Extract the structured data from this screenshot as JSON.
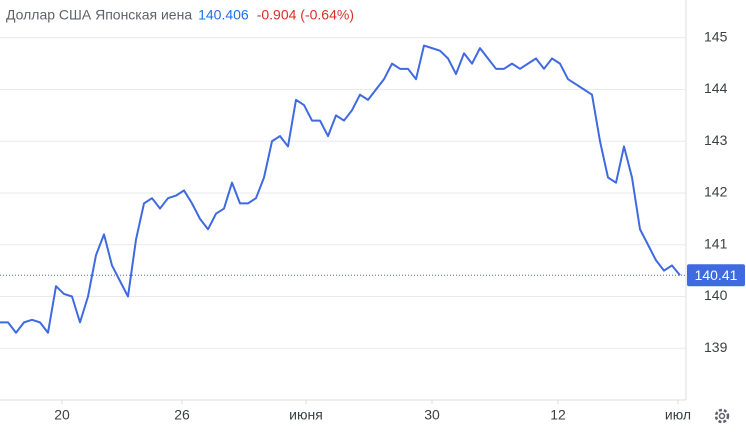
{
  "chart_data": {
    "type": "line",
    "title": "Доллар США Японская иена",
    "price": "140.406",
    "change": "-0.904 (-0.64%)",
    "x": [
      0,
      1,
      2,
      3,
      4,
      5,
      6,
      7,
      8,
      9,
      10,
      11,
      12,
      13,
      14,
      15,
      16,
      17,
      18,
      19,
      20,
      21,
      22,
      23,
      24,
      25,
      26,
      27,
      28,
      29,
      30,
      31,
      32,
      33,
      34,
      35,
      36,
      37,
      38,
      39,
      40,
      41,
      42,
      43,
      44,
      45,
      46,
      47,
      48,
      49,
      50,
      51,
      52,
      53,
      54,
      55,
      56,
      57,
      58,
      59,
      60,
      61,
      62,
      63,
      64,
      65,
      66,
      67,
      68,
      69,
      70,
      71,
      72,
      73,
      74,
      75,
      76,
      77,
      78,
      79,
      80,
      81,
      82,
      83,
      84,
      85
    ],
    "series": [
      {
        "name": "USD/JPY",
        "color": "#3f6ae0",
        "values": [
          139.5,
          139.5,
          139.3,
          139.5,
          139.55,
          139.5,
          139.3,
          140.2,
          140.05,
          140.0,
          139.5,
          140.0,
          140.8,
          141.2,
          140.6,
          140.3,
          140.0,
          141.1,
          141.8,
          141.9,
          141.7,
          141.9,
          141.95,
          142.05,
          141.8,
          141.5,
          141.3,
          141.6,
          141.7,
          142.2,
          141.8,
          141.8,
          141.9,
          142.3,
          143.0,
          143.1,
          142.9,
          143.8,
          143.7,
          143.4,
          143.4,
          143.1,
          143.5,
          143.4,
          143.6,
          143.9,
          143.8,
          144.0,
          144.2,
          144.5,
          144.4,
          144.4,
          144.2,
          144.85,
          144.8,
          144.75,
          144.6,
          144.3,
          144.7,
          144.5,
          144.8,
          144.6,
          144.4,
          144.4,
          144.5,
          144.4,
          144.5,
          144.6,
          144.4,
          144.6,
          144.5,
          144.2,
          144.1,
          144.0,
          143.9,
          143.0,
          142.3,
          142.2,
          142.9,
          142.3,
          141.3,
          141.0,
          140.7,
          140.5,
          140.6,
          140.41
        ]
      }
    ],
    "last_price": 140.41,
    "xlim": [
      0,
      86
    ],
    "xticks": [
      {
        "value": 7.75,
        "label": "20"
      },
      {
        "value": 22.75,
        "label": "26"
      },
      {
        "value": 38.25,
        "label": "июня"
      },
      {
        "value": 54,
        "label": "30"
      },
      {
        "value": 69.75,
        "label": "12"
      },
      {
        "value": 84.75,
        "label": "июл"
      }
    ],
    "ylim": [
      138.0,
      145.73
    ],
    "yticks": [
      139,
      140,
      141,
      142,
      143,
      144,
      145
    ],
    "grid": true
  }
}
